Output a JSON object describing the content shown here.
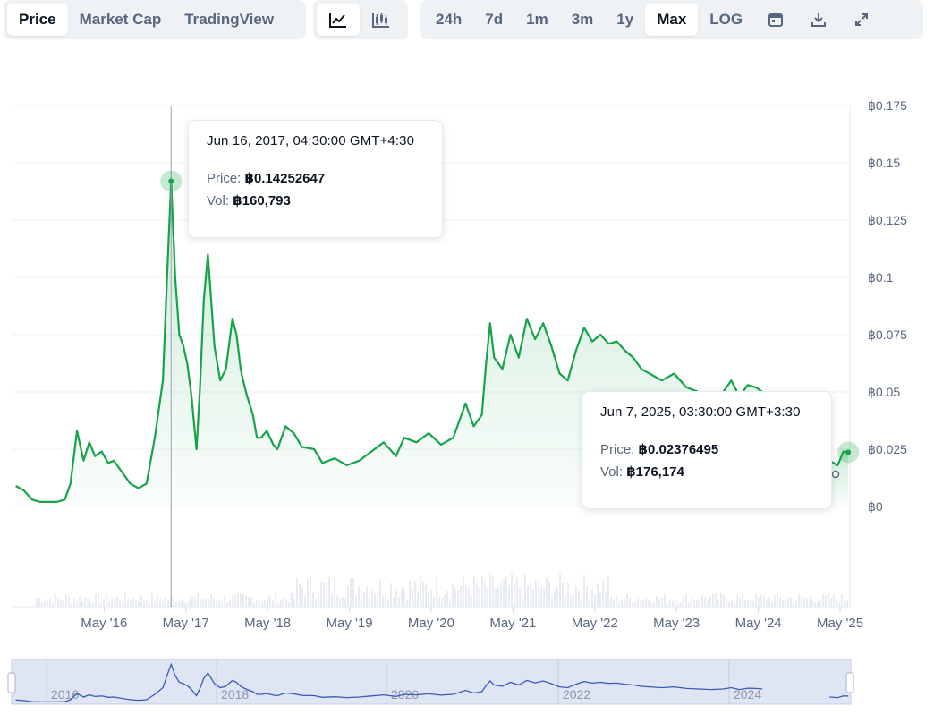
{
  "toolbar": {
    "view_tabs": [
      {
        "label": "Price",
        "active": true
      },
      {
        "label": "Market Cap",
        "active": false
      },
      {
        "label": "TradingView",
        "active": false
      }
    ],
    "chart_types": [
      {
        "icon": "line-chart-icon",
        "active": true
      },
      {
        "icon": "candlestick-icon",
        "active": false
      }
    ],
    "ranges": [
      {
        "label": "24h",
        "active": false
      },
      {
        "label": "7d",
        "active": false
      },
      {
        "label": "1m",
        "active": false
      },
      {
        "label": "3m",
        "active": false
      },
      {
        "label": "1y",
        "active": false
      },
      {
        "label": "Max",
        "active": true
      },
      {
        "label": "LOG",
        "active": false
      }
    ],
    "tools": [
      {
        "icon": "calendar-icon"
      },
      {
        "icon": "download-icon"
      },
      {
        "icon": "fullscreen-icon"
      }
    ]
  },
  "tooltips": [
    {
      "date": "Jun 16, 2017, 04:30:00 GMT+4:30",
      "price_label": "Price:",
      "price": "฿0.14252647",
      "vol_label": "Vol:",
      "vol": "฿160,793"
    },
    {
      "date": "Jun 7, 2025, 03:30:00 GMT+3:30",
      "price_label": "Price:",
      "price": "฿0.02376495",
      "vol_label": "Vol:",
      "vol": "฿176,174"
    }
  ],
  "colors": {
    "line": "#16a34a",
    "navigator_line": "#3b5bb5",
    "grid": "#eef0f3",
    "axis_text": "#58667e"
  },
  "chart_data": {
    "type": "area",
    "currency_symbol": "฿",
    "ylim": [
      0,
      0.175
    ],
    "y_ticks": [
      "฿0",
      "฿0.025",
      "฿0.05",
      "฿0.075",
      "฿0.1",
      "฿0.125",
      "฿0.15",
      "฿0.175"
    ],
    "x_ticks": [
      "May '16",
      "May '17",
      "May '18",
      "May '19",
      "May '20",
      "May '21",
      "May '22",
      "May '23",
      "May '24",
      "May '25"
    ],
    "navigator_labels": [
      "2016",
      "2018",
      "2020",
      "2022",
      "2024"
    ],
    "grid": true,
    "series": [
      {
        "values_x_year": [
          2015.25,
          2015.35,
          2015.45,
          2015.55,
          2015.65,
          2015.75,
          2015.85,
          2015.92,
          2016.0,
          2016.08,
          2016.15,
          2016.22,
          2016.3,
          2016.38,
          2016.45,
          2016.55,
          2016.65,
          2016.75,
          2016.85,
          2016.95,
          2017.05,
          2017.1,
          2017.15,
          2017.2,
          2017.25,
          2017.3,
          2017.35,
          2017.4,
          2017.46,
          2017.5,
          2017.55,
          2017.6,
          2017.68,
          2017.75,
          2017.82,
          2017.9,
          2017.95,
          2018.0,
          2018.03,
          2018.08,
          2018.15,
          2018.2,
          2018.25,
          2018.32,
          2018.4,
          2018.45,
          2018.55,
          2018.65,
          2018.75,
          2018.9,
          2019.0,
          2019.15,
          2019.3,
          2019.45,
          2019.6,
          2019.75,
          2019.9,
          2020.0,
          2020.15,
          2020.3,
          2020.45,
          2020.6,
          2020.75,
          2020.85,
          2020.95,
          2021.0,
          2021.05,
          2021.1,
          2021.2,
          2021.3,
          2021.4,
          2021.5,
          2021.6,
          2021.7,
          2021.8,
          2021.9,
          2022.0,
          2022.1,
          2022.2,
          2022.3,
          2022.4,
          2022.5,
          2022.6,
          2022.7,
          2022.8,
          2022.9,
          2023.0,
          2023.15,
          2023.3,
          2023.45,
          2023.6,
          2023.75,
          2023.9,
          2024.0,
          2024.1,
          2024.2,
          2024.3,
          2024.38
        ],
        "values": [
          0.009,
          0.007,
          0.003,
          0.002,
          0.002,
          0.002,
          0.003,
          0.01,
          0.033,
          0.02,
          0.028,
          0.022,
          0.024,
          0.019,
          0.02,
          0.015,
          0.01,
          0.008,
          0.01,
          0.03,
          0.055,
          0.1,
          0.142,
          0.1,
          0.075,
          0.07,
          0.062,
          0.048,
          0.025,
          0.05,
          0.09,
          0.11,
          0.07,
          0.055,
          0.06,
          0.082,
          0.075,
          0.06,
          0.055,
          0.048,
          0.04,
          0.03,
          0.03,
          0.033,
          0.027,
          0.025,
          0.035,
          0.032,
          0.026,
          0.025,
          0.019,
          0.021,
          0.018,
          0.02,
          0.024,
          0.028,
          0.022,
          0.03,
          0.028,
          0.032,
          0.027,
          0.03,
          0.045,
          0.035,
          0.04,
          0.062,
          0.08,
          0.065,
          0.06,
          0.075,
          0.065,
          0.082,
          0.073,
          0.08,
          0.07,
          0.058,
          0.055,
          0.068,
          0.078,
          0.072,
          0.075,
          0.071,
          0.072,
          0.068,
          0.065,
          0.06,
          0.058,
          0.055,
          0.058,
          0.052,
          0.05,
          0.048,
          0.05,
          0.055,
          0.048,
          0.053,
          0.052,
          0.05
        ]
      },
      {
        "values_x_year": [
          2025.2,
          2025.3,
          2025.37,
          2025.43
        ],
        "values": [
          0.02,
          0.018,
          0.024,
          0.0237
        ]
      }
    ]
  }
}
